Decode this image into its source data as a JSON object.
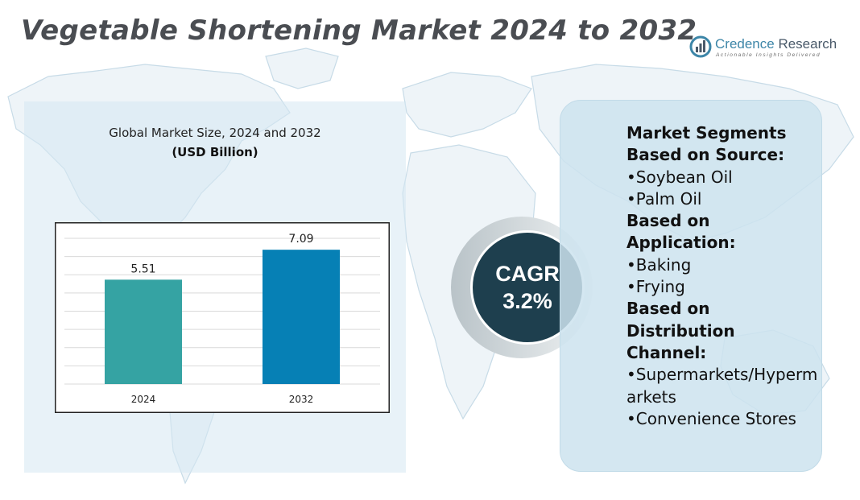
{
  "page": {
    "title": "Vegetable Shortening Market 2024 to 2032"
  },
  "logo": {
    "name_part1": "Credence",
    "name_part2": " Research",
    "tagline": "Actionable Insights Delivered"
  },
  "chart_data": {
    "type": "bar",
    "title": "Global Market Size, 2024 and 2032",
    "ylabel": "(USD Billion)",
    "xlabel": "",
    "categories": [
      "2024",
      "2032"
    ],
    "values": [
      5.51,
      7.09
    ],
    "value_labels": [
      "5.51",
      "7.09"
    ],
    "colors": [
      "#35a3a3",
      "#0680b5"
    ],
    "ylim": [
      0,
      8
    ],
    "grid": true,
    "legend": "none"
  },
  "cagr": {
    "label": "CAGR",
    "value": "3.2%"
  },
  "segments": [
    {
      "text": "Market Segments",
      "bold": true
    },
    {
      "text": "Based on Source:",
      "bold": true
    },
    {
      "text": "•Soybean Oil",
      "bold": false
    },
    {
      "text": "•Palm Oil",
      "bold": false
    },
    {
      "text": "Based on Application:",
      "bold": true
    },
    {
      "text": "•Baking",
      "bold": false
    },
    {
      "text": "•Frying",
      "bold": false
    },
    {
      "text": "Based on Distribution Channel:",
      "bold": true
    },
    {
      "text": "•Supermarkets/Hypermarkets",
      "bold": false
    },
    {
      "text": "•Convenience Stores",
      "bold": false
    }
  ]
}
